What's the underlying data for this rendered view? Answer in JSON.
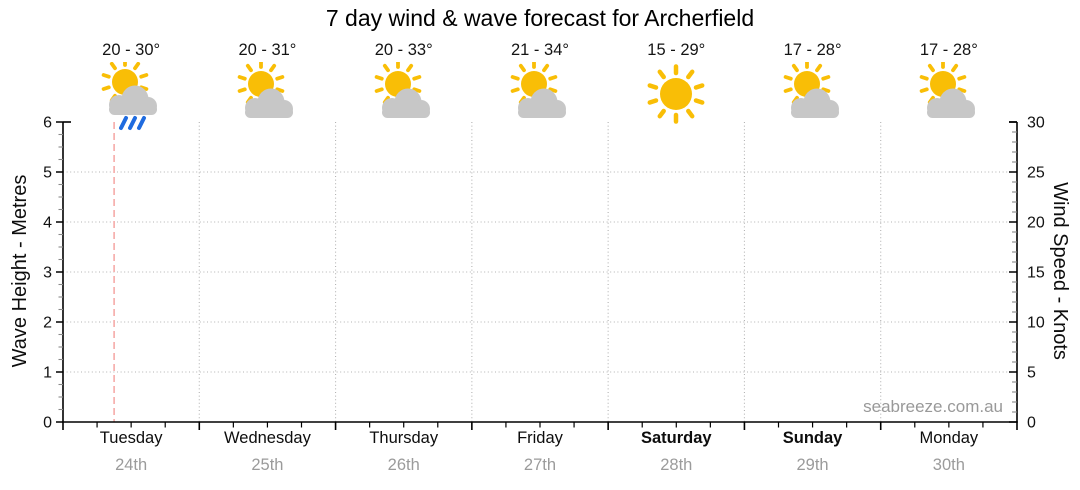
{
  "chart_data": {
    "type": "line",
    "title": "7 day wind & wave forecast for Archerfield",
    "watermark": "seabreeze.com.au",
    "categories": [
      "Tuesday 24th",
      "Wednesday 25th",
      "Thursday 26th",
      "Friday 27th",
      "Saturday 28th",
      "Sunday 29th",
      "Monday 30th"
    ],
    "series": [],
    "plot_note": "plot area is empty - no wave or wind series drawn",
    "grid": "dotted gray; horizontal lines at 1-5 metres, vertical lines at day boundaries",
    "legend": "none",
    "left_axis": {
      "label": "Wave Height - Metres",
      "min": 0,
      "max": 6,
      "major_step": 1,
      "minor_step": 0.25,
      "ticks": [
        0,
        1,
        2,
        3,
        4,
        5,
        6
      ]
    },
    "right_axis": {
      "label": "Wind Speed - Knots",
      "min": 0,
      "max": 30,
      "major_step": 5,
      "minor_step": 1,
      "ticks": [
        0,
        5,
        10,
        15,
        20,
        25,
        30
      ]
    },
    "x_axis": {
      "minor_ticks_per_day": 3
    },
    "now_marker": {
      "day_index": 0,
      "day_fraction": 0.375,
      "style": "dashed vertical line"
    },
    "days": [
      {
        "name": "Tuesday",
        "date": "24th",
        "temps": "20 - 30°",
        "icon": "sun-cloud-rain",
        "weekend": false
      },
      {
        "name": "Wednesday",
        "date": "25th",
        "temps": "20 - 31°",
        "icon": "sun-cloud",
        "weekend": false
      },
      {
        "name": "Thursday",
        "date": "26th",
        "temps": "20 - 33°",
        "icon": "sun-cloud",
        "weekend": false
      },
      {
        "name": "Friday",
        "date": "27th",
        "temps": "21 - 34°",
        "icon": "sun-cloud",
        "weekend": false
      },
      {
        "name": "Saturday",
        "date": "28th",
        "temps": "15 - 29°",
        "icon": "sun",
        "weekend": true
      },
      {
        "name": "Sunday",
        "date": "29th",
        "temps": "17 - 28°",
        "icon": "sun-cloud",
        "weekend": true
      },
      {
        "name": "Monday",
        "date": "30th",
        "temps": "17 - 28°",
        "icon": "sun-cloud",
        "weekend": false
      }
    ]
  },
  "colors": {
    "sun": "#F9BE06",
    "cloud": "#C7C7C7",
    "rain": "#1F6BDF",
    "grid": "#B3B3B3",
    "axis": "#000000",
    "minor_tick": "#8A8A8A",
    "now_line": "#F6ABA8",
    "temp_text": "#141414",
    "day_text": "#0D0D0D",
    "date_text": "#9B9B9B",
    "watermark_text": "#999999"
  }
}
